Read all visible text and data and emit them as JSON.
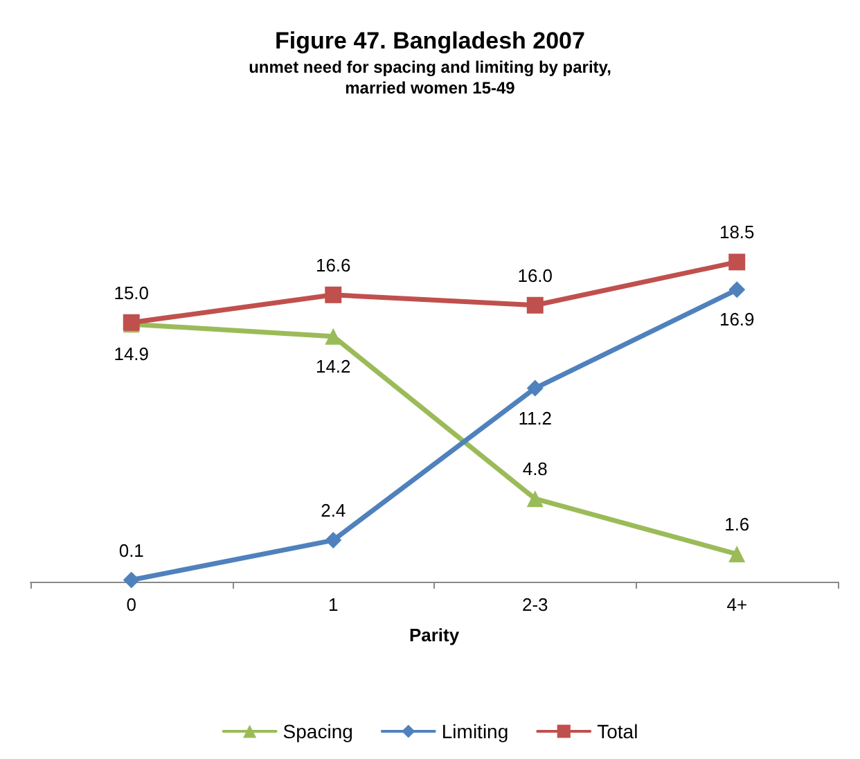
{
  "chart_data": {
    "type": "line",
    "title": "Figure 47. Bangladesh 2007",
    "subtitle": "unmet need for spacing and limiting by parity,\nmarried women 15-49",
    "xlabel": "Parity",
    "categories": [
      "0",
      "1",
      "2-3",
      "4+"
    ],
    "grid": false,
    "legend": "bottom",
    "series": [
      {
        "name": "Spacing",
        "color": "#9bbb59",
        "marker": "triangle",
        "values": [
          14.9,
          14.2,
          4.8,
          1.6
        ],
        "value_labels": [
          "14.9",
          "14.2",
          "4.8",
          "1.6"
        ]
      },
      {
        "name": "Limiting",
        "color": "#4f81bd",
        "marker": "diamond",
        "values": [
          0.1,
          2.4,
          11.2,
          16.9
        ],
        "value_labels": [
          "0.1",
          "2.4",
          "11.2",
          "16.9"
        ]
      },
      {
        "name": "Total",
        "color": "#c0504d",
        "marker": "square",
        "values": [
          15.0,
          16.6,
          16.0,
          18.5
        ],
        "value_labels": [
          "15.0",
          "16.6",
          "16.0",
          "18.5"
        ]
      }
    ]
  }
}
